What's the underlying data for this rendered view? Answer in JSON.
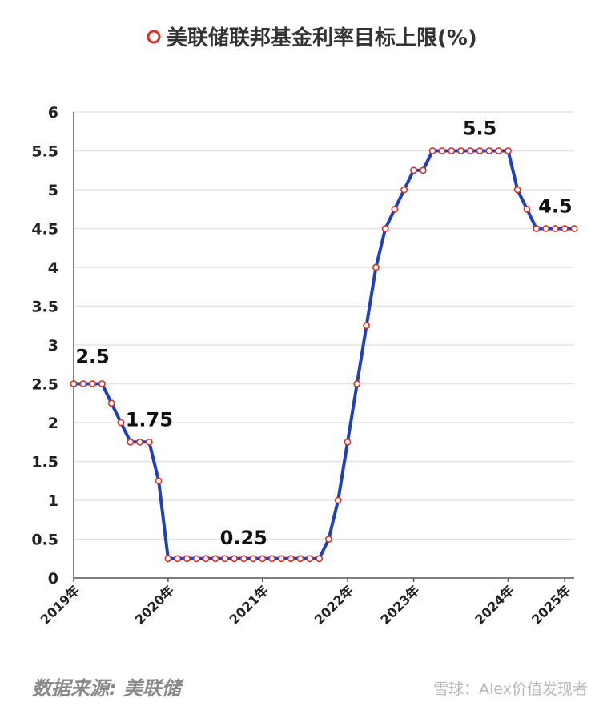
{
  "chart_data": {
    "type": "line",
    "title": "美联储联邦基金利率目标上限(%)",
    "x_ticks": [
      "2019年",
      "2020年",
      "2021年",
      "2022年",
      "2023年",
      "2024年",
      "2025年"
    ],
    "ylim": [
      0,
      6
    ],
    "y_ticks": [
      "0",
      "0.5",
      "1",
      "1.5",
      "2",
      "2.5",
      "3",
      "3.5",
      "4",
      "4.5",
      "5",
      "5.5",
      "6"
    ],
    "grid": true,
    "legend": "top",
    "series": [
      {
        "name": "美联储联邦基金利率目标上限(%)",
        "values": [
          2.5,
          2.5,
          2.5,
          2.5,
          2.25,
          2.0,
          1.75,
          1.75,
          1.75,
          1.25,
          0.25,
          0.25,
          0.25,
          0.25,
          0.25,
          0.25,
          0.25,
          0.25,
          0.25,
          0.25,
          0.25,
          0.25,
          0.25,
          0.25,
          0.25,
          0.25,
          0.25,
          0.5,
          1.0,
          1.75,
          2.5,
          3.25,
          4.0,
          4.5,
          4.75,
          5.0,
          5.25,
          5.25,
          5.5,
          5.5,
          5.5,
          5.5,
          5.5,
          5.5,
          5.5,
          5.5,
          5.5,
          5.0,
          4.75,
          4.5,
          4.5,
          4.5,
          4.5,
          4.5
        ]
      }
    ],
    "annotations": [
      "2.5",
      "1.75",
      "0.25",
      "5.5",
      "4.5"
    ],
    "colors": {
      "line": "#1f3fbf",
      "marker_edge": "#d9301f",
      "marker_fill": "#ffffff",
      "grid": "#e3e3e3"
    }
  },
  "source_text": "数据来源: 美联储",
  "watermark_text": "雪球：Alex价值发现者"
}
